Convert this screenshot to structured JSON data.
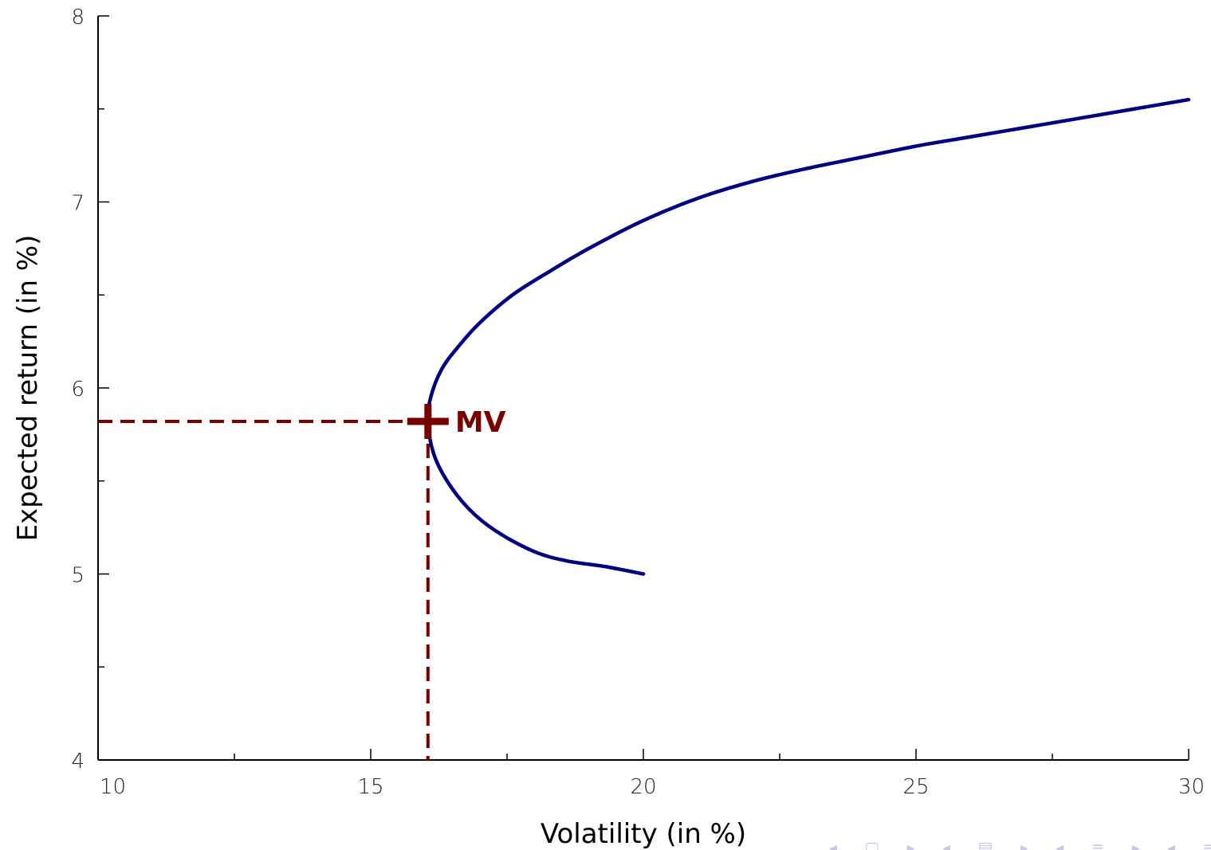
{
  "chart_data": {
    "type": "line",
    "title": "",
    "xlabel": "Volatility (in %)",
    "ylabel": "Expected return (in %)",
    "xlim": [
      10,
      30
    ],
    "ylim": [
      4,
      8
    ],
    "x_ticks": [
      "10",
      "15",
      "20",
      "25",
      "30"
    ],
    "y_ticks": [
      "4",
      "5",
      "6",
      "7",
      "8"
    ],
    "grid": false,
    "series": [
      {
        "color": "#000080",
        "points": [
          [
            20.0,
            5.0
          ],
          [
            19.3,
            5.04
          ],
          [
            18.6,
            5.07
          ],
          [
            18.0,
            5.12
          ],
          [
            17.3,
            5.23
          ],
          [
            16.8,
            5.35
          ],
          [
            16.4,
            5.5
          ],
          [
            16.15,
            5.65
          ],
          [
            16.05,
            5.82
          ],
          [
            16.1,
            5.95
          ],
          [
            16.3,
            6.1
          ],
          [
            16.6,
            6.22
          ],
          [
            17.0,
            6.35
          ],
          [
            17.6,
            6.5
          ],
          [
            18.3,
            6.63
          ],
          [
            19.0,
            6.75
          ],
          [
            20.0,
            6.9
          ],
          [
            21.0,
            7.02
          ],
          [
            22.0,
            7.11
          ],
          [
            23.0,
            7.18
          ],
          [
            24.0,
            7.24
          ],
          [
            25.0,
            7.3
          ],
          [
            26.0,
            7.35
          ],
          [
            27.0,
            7.4
          ],
          [
            28.0,
            7.45
          ],
          [
            29.0,
            7.5
          ],
          [
            30.0,
            7.55
          ]
        ]
      }
    ],
    "annotations": [
      {
        "label": "MV",
        "x": 16.05,
        "y": 5.82,
        "marker": "plus",
        "color": "#7a0000",
        "dashed_guides": true
      }
    ]
  }
}
